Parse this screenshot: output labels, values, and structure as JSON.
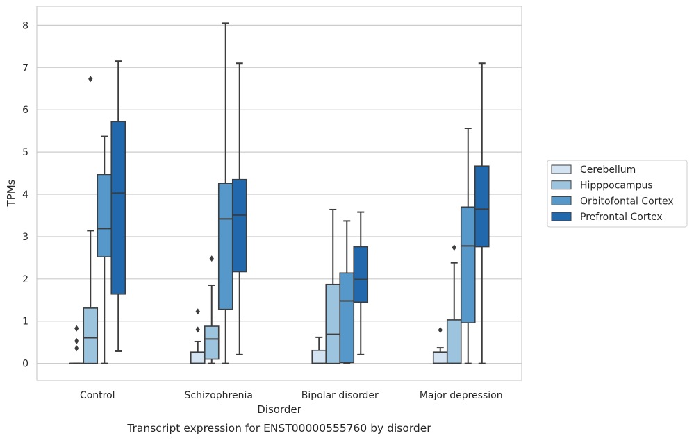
{
  "chart_data": {
    "type": "boxplot",
    "title": "",
    "caption": "Transcript expression for ENST00000555760 by disorder",
    "xlabel": "Disorder",
    "ylabel": "TPMs",
    "ylim": [
      -0.4,
      8.45
    ],
    "yticks": [
      "0",
      "1",
      "2",
      "3",
      "4",
      "5",
      "6",
      "7",
      "8"
    ],
    "grid": "horizontal",
    "legend_position": "right",
    "categories": [
      "Control",
      "Schizophrenia",
      "Bipolar disorder",
      "Major depression"
    ],
    "series": [
      {
        "name": "Cerebellum",
        "color": "#d3e3f2",
        "boxes": [
          {
            "min": 0,
            "q1": 0,
            "median": 0,
            "q3": 0,
            "max": 0,
            "outliers": [
              0.36,
              0.53,
              0.83
            ]
          },
          {
            "min": 0,
            "q1": 0,
            "median": 0,
            "q3": 0.27,
            "max": 0.52,
            "outliers": [
              0.8,
              1.23
            ]
          },
          {
            "min": 0,
            "q1": 0,
            "median": 0,
            "q3": 0.31,
            "max": 0.62,
            "outliers": []
          },
          {
            "min": 0,
            "q1": 0,
            "median": 0,
            "q3": 0.27,
            "max": 0.37,
            "outliers": [
              0.79
            ]
          }
        ]
      },
      {
        "name": "Hipppocampus",
        "color": "#9dc4df",
        "boxes": [
          {
            "min": 0,
            "q1": 0,
            "median": 0.61,
            "q3": 1.31,
            "max": 3.14,
            "outliers": [
              6.73
            ]
          },
          {
            "min": 0,
            "q1": 0.1,
            "median": 0.58,
            "q3": 0.88,
            "max": 1.85,
            "outliers": [
              2.48
            ]
          },
          {
            "min": 0,
            "q1": 0,
            "median": 0.69,
            "q3": 1.87,
            "max": 3.64,
            "outliers": []
          },
          {
            "min": 0,
            "q1": 0,
            "median": 0,
            "q3": 1.03,
            "max": 2.38,
            "outliers": [
              2.74
            ]
          }
        ]
      },
      {
        "name": "Orbitofontal Cortex",
        "color": "#5598c9",
        "boxes": [
          {
            "min": 0,
            "q1": 2.52,
            "median": 3.19,
            "q3": 4.47,
            "max": 5.37,
            "outliers": []
          },
          {
            "min": 0,
            "q1": 1.28,
            "median": 3.42,
            "q3": 4.26,
            "max": 8.05,
            "outliers": []
          },
          {
            "min": 0,
            "q1": 0.02,
            "median": 1.48,
            "q3": 2.14,
            "max": 3.37,
            "outliers": []
          },
          {
            "min": 0,
            "q1": 0.96,
            "median": 2.78,
            "q3": 3.7,
            "max": 5.56,
            "outliers": []
          }
        ]
      },
      {
        "name": "Prefrontal Cortex",
        "color": "#2268ac",
        "boxes": [
          {
            "min": 0.29,
            "q1": 1.64,
            "median": 4.03,
            "q3": 5.72,
            "max": 7.15,
            "outliers": []
          },
          {
            "min": 0.21,
            "q1": 2.17,
            "median": 3.51,
            "q3": 4.35,
            "max": 7.1,
            "outliers": []
          },
          {
            "min": 0.21,
            "q1": 1.45,
            "median": 1.99,
            "q3": 2.76,
            "max": 3.58,
            "outliers": []
          },
          {
            "min": 0,
            "q1": 2.76,
            "median": 3.65,
            "q3": 4.67,
            "max": 7.1,
            "outliers": []
          }
        ]
      }
    ]
  }
}
